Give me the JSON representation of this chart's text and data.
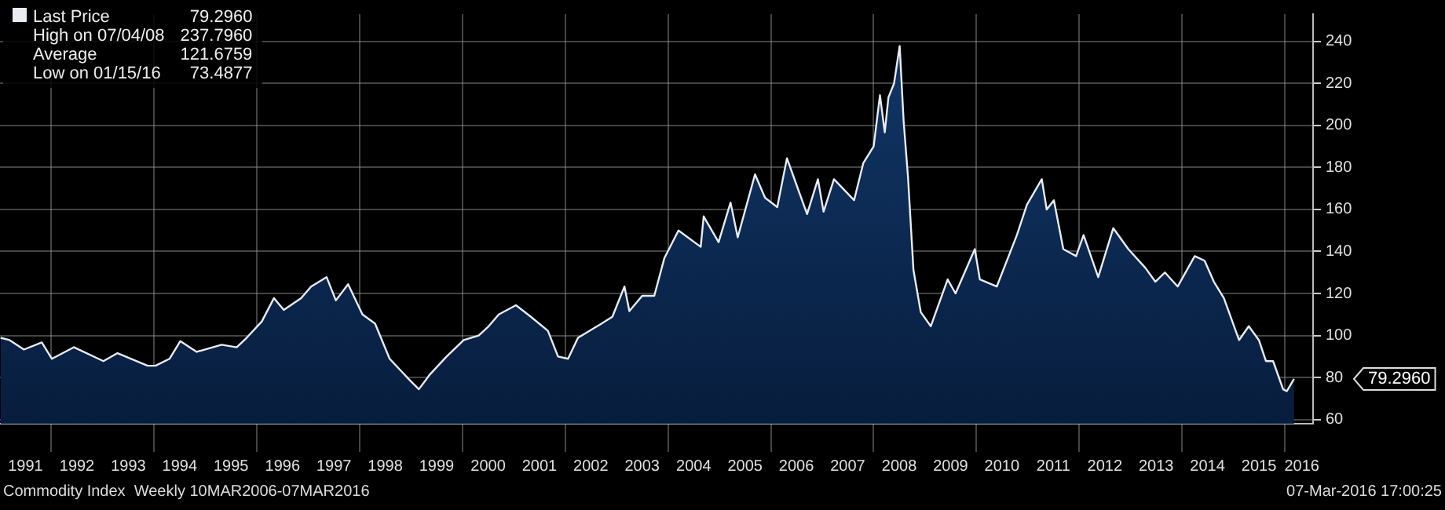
{
  "chart_data": {
    "type": "area",
    "legend": "top left",
    "grid": true,
    "x": [
      "1991-01-05",
      "1991-03-10",
      "1991-06-20",
      "1991-10-25",
      "1992-01-05",
      "1992-06-10",
      "1993-01-05",
      "1993-04-15",
      "1993-11-15",
      "1994-01-10",
      "1994-04-20",
      "1994-07-05",
      "1994-10-30",
      "1995-04-25",
      "1995-08-10",
      "1995-10-20",
      "1996-02-05",
      "1996-05-01",
      "1996-07-10",
      "1996-11-10",
      "1997-01-20",
      "1997-05-10",
      "1997-07-15",
      "1997-10-10",
      "1998-01-20",
      "1998-04-20",
      "1998-08-01",
      "1998-12-20",
      "1999-02-25",
      "1999-05-10",
      "1999-09-10",
      "2000-01-10",
      "2000-04-25",
      "2000-07-05",
      "2000-09-15",
      "2001-01-15",
      "2001-05-01",
      "2001-08-30",
      "2001-11-10",
      "2002-01-20",
      "2002-04-01",
      "2002-08-15",
      "2002-12-01",
      "2003-02-25",
      "2003-04-01",
      "2003-07-01",
      "2003-09-25",
      "2003-12-05",
      "2004-03-15",
      "2004-08-20",
      "2004-09-10",
      "2004-12-25",
      "2005-03-20",
      "2005-05-10",
      "2005-09-10",
      "2005-11-20",
      "2006-02-15",
      "2006-04-25",
      "2006-07-05",
      "2006-09-15",
      "2006-12-01",
      "2007-01-10",
      "2007-03-25",
      "2007-08-15",
      "2007-10-20",
      "2008-01-01",
      "2008-02-15",
      "2008-03-20",
      "2008-04-15",
      "2008-05-25",
      "2008-07-04",
      "2008-08-01",
      "2008-09-01",
      "2008-10-10",
      "2008-12-01",
      "2009-02-10",
      "2009-06-10",
      "2009-08-05",
      "2009-12-20",
      "2010-01-25",
      "2010-05-25",
      "2010-10-15",
      "2010-12-25",
      "2011-04-10",
      "2011-05-15",
      "2011-07-05",
      "2011-09-10",
      "2011-12-10",
      "2012-02-01",
      "2012-05-15",
      "2012-08-30",
      "2012-12-15",
      "2013-04-15",
      "2013-06-25",
      "2013-09-01",
      "2013-12-01",
      "2014-04-01",
      "2014-06-10",
      "2014-08-15",
      "2014-10-25",
      "2015-02-10",
      "2015-04-20",
      "2015-07-01",
      "2015-08-20",
      "2015-10-10",
      "2015-12-20",
      "2016-01-15",
      "2016-03-07"
    ],
    "series": [
      {
        "name": "Last Price",
        "color": "#e8ecf2",
        "values": [
          98.9,
          97.8,
          93.3,
          96.7,
          88.9,
          94.4,
          87.8,
          91.6,
          85.6,
          85.6,
          88.9,
          97.3,
          92.2,
          95.6,
          94.4,
          98.9,
          106.7,
          117.8,
          112.2,
          117.8,
          123.3,
          127.8,
          116.7,
          124.4,
          110,
          105.6,
          88.9,
          78.9,
          74.4,
          81.1,
          90,
          97.8,
          100,
          104.4,
          110,
          114.4,
          108.9,
          102.2,
          90,
          88.9,
          98.9,
          104.4,
          108.9,
          123.3,
          111.6,
          118.9,
          118.9,
          136.7,
          150,
          142.2,
          156.7,
          144.4,
          163.3,
          146.7,
          176.7,
          165.6,
          161.1,
          184.4,
          171.1,
          157.8,
          174.4,
          158.9,
          174.4,
          164.4,
          182.2,
          190,
          214.4,
          196.7,
          213.3,
          220,
          237.8,
          202.2,
          175.6,
          131.1,
          111.1,
          104.4,
          126.7,
          120,
          141.1,
          126.7,
          123.3,
          147.8,
          162.2,
          174.4,
          160,
          164.4,
          141.1,
          137.8,
          147.8,
          127.8,
          151.1,
          141.1,
          132.2,
          125.6,
          130,
          123.3,
          137.8,
          135.6,
          125.6,
          117.8,
          97.8,
          104.4,
          97.8,
          87.8,
          87.8,
          74.4,
          73.5,
          79.3
        ]
      }
    ],
    "xlim": [
      "1991-01-01",
      "2016-07-20"
    ],
    "xticks": [
      {
        "value": "1991-07-01",
        "label": "1991"
      },
      {
        "value": "1992-01-01",
        "label": null
      },
      {
        "value": "1992-07-01",
        "label": "1992"
      },
      {
        "value": "1993-07-01",
        "label": "1993"
      },
      {
        "value": "1994-01-01",
        "label": null
      },
      {
        "value": "1994-07-01",
        "label": "1994"
      },
      {
        "value": "1995-07-01",
        "label": "1995"
      },
      {
        "value": "1996-01-01",
        "label": null
      },
      {
        "value": "1996-07-01",
        "label": "1996"
      },
      {
        "value": "1997-07-01",
        "label": "1997"
      },
      {
        "value": "1998-01-01",
        "label": null
      },
      {
        "value": "1998-07-01",
        "label": "1998"
      },
      {
        "value": "1999-07-01",
        "label": "1999"
      },
      {
        "value": "2000-01-01",
        "label": null
      },
      {
        "value": "2000-07-01",
        "label": "2000"
      },
      {
        "value": "2001-07-01",
        "label": "2001"
      },
      {
        "value": "2002-01-01",
        "label": null
      },
      {
        "value": "2002-07-01",
        "label": "2002"
      },
      {
        "value": "2003-07-01",
        "label": "2003"
      },
      {
        "value": "2004-01-01",
        "label": null
      },
      {
        "value": "2004-07-01",
        "label": "2004"
      },
      {
        "value": "2005-07-01",
        "label": "2005"
      },
      {
        "value": "2006-01-01",
        "label": null
      },
      {
        "value": "2006-07-01",
        "label": "2006"
      },
      {
        "value": "2007-07-01",
        "label": "2007"
      },
      {
        "value": "2008-01-01",
        "label": null
      },
      {
        "value": "2008-07-01",
        "label": "2008"
      },
      {
        "value": "2009-07-01",
        "label": "2009"
      },
      {
        "value": "2010-01-01",
        "label": null
      },
      {
        "value": "2010-07-01",
        "label": "2010"
      },
      {
        "value": "2011-07-01",
        "label": "2011"
      },
      {
        "value": "2012-01-01",
        "label": null
      },
      {
        "value": "2012-07-01",
        "label": "2012"
      },
      {
        "value": "2013-07-01",
        "label": "2013"
      },
      {
        "value": "2014-01-01",
        "label": null
      },
      {
        "value": "2014-07-01",
        "label": "2014"
      },
      {
        "value": "2015-07-01",
        "label": "2015"
      },
      {
        "value": "2016-01-01",
        "label": null
      },
      {
        "value": "2016-05-01",
        "label": "2016"
      }
    ],
    "ylim": [
      58,
      253
    ],
    "yticks": [
      60,
      80,
      100,
      120,
      140,
      160,
      180,
      200,
      220,
      240
    ],
    "annotations": [
      "79.2960",
      "High on 07/04/08 237.7960",
      "Average 121.6759",
      "Low on 01/15/16 73.4877",
      "Commodity Index  Weekly 10MAR2006-07MAR2016",
      "07-Mar-2016 17:00:25",
      "79.2960"
    ]
  }
}
